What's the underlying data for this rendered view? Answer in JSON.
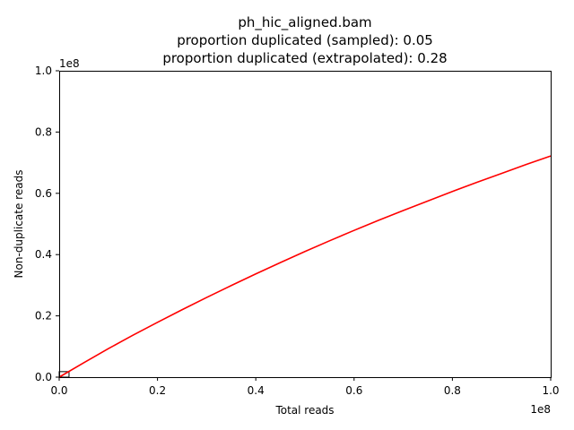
{
  "chart_data": {
    "type": "line",
    "title": "ph_hic_aligned.bam",
    "subtitle_lines": [
      "proportion duplicated (sampled): 0.05",
      "proportion duplicated (extrapolated): 0.28"
    ],
    "xlabel": "Total reads",
    "ylabel": "Non-duplicate reads",
    "x_offset_label": "1e8",
    "y_offset_label": "1e8",
    "xlim": [
      0,
      1.0
    ],
    "ylim": [
      0,
      1.0
    ],
    "x_ticks": [
      "0.0",
      "0.2",
      "0.4",
      "0.6",
      "0.8",
      "1.0"
    ],
    "y_ticks": [
      "0.0",
      "0.2",
      "0.4",
      "0.6",
      "0.8",
      "1.0"
    ],
    "grid": false,
    "series": [
      {
        "color": "#ff0000",
        "x": [
          0,
          0.05,
          0.1,
          0.15,
          0.2,
          0.25,
          0.3,
          0.35,
          0.4,
          0.45,
          0.5,
          0.55,
          0.6,
          0.65,
          0.7,
          0.75,
          0.8,
          0.85,
          0.9,
          0.95,
          1.0
        ],
        "y": [
          0,
          0.047,
          0.093,
          0.137,
          0.179,
          0.22,
          0.26,
          0.299,
          0.337,
          0.374,
          0.41,
          0.445,
          0.479,
          0.512,
          0.544,
          0.575,
          0.606,
          0.636,
          0.665,
          0.694,
          0.722
        ]
      }
    ],
    "sample_box": {
      "x": [
        0,
        0.02
      ],
      "y": [
        0,
        0.018
      ]
    }
  }
}
